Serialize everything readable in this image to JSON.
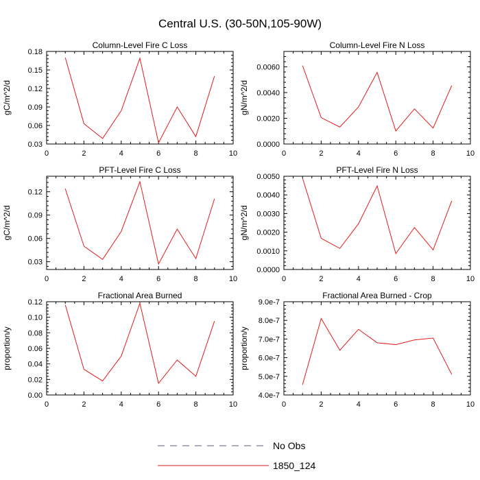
{
  "figure_title": "Central U.S. (30-50N,105-90W)",
  "legend": {
    "entries": [
      {
        "label": "No Obs",
        "style": "dashed",
        "color": "#5a5a8a"
      },
      {
        "label": "1850_124",
        "style": "solid",
        "color": "#e31a1c"
      }
    ]
  },
  "chart_data": [
    {
      "type": "line",
      "title": "Column-Level Fire C Loss",
      "ylabel": "gC/m^2/d",
      "xlim": [
        0,
        10
      ],
      "ylim": [
        0.03,
        0.18
      ],
      "xticks": [
        "0",
        "2",
        "4",
        "6",
        "8",
        "10"
      ],
      "yticks": [
        "0.03",
        "0.06",
        "0.09",
        "0.12",
        "0.15",
        "0.18"
      ],
      "x": [
        1,
        2,
        3,
        4,
        5,
        6,
        7,
        8,
        9
      ],
      "series": [
        {
          "name": "1850_124",
          "color": "#e31a1c",
          "values": [
            0.17,
            0.063,
            0.039,
            0.084,
            0.169,
            0.032,
            0.09,
            0.042,
            0.14
          ]
        }
      ]
    },
    {
      "type": "line",
      "title": "Column-Level Fire N Loss",
      "ylabel": "gN/m^2/d",
      "xlim": [
        0,
        10
      ],
      "ylim": [
        0.0,
        0.0072
      ],
      "xticks": [
        "0",
        "2",
        "4",
        "6",
        "8",
        "10"
      ],
      "yticks": [
        "0.0000",
        "0.0020",
        "0.0040",
        "0.0060"
      ],
      "x": [
        1,
        2,
        3,
        4,
        5,
        6,
        7,
        8,
        9
      ],
      "series": [
        {
          "name": "1850_124",
          "color": "#e31a1c",
          "values": [
            0.0061,
            0.00205,
            0.00132,
            0.00288,
            0.00557,
            0.00101,
            0.00273,
            0.00124,
            0.00455
          ]
        }
      ]
    },
    {
      "type": "line",
      "title": "PFT-Level Fire C Loss",
      "ylabel": "gC/m^2/d",
      "xlim": [
        0,
        10
      ],
      "ylim": [
        0.02,
        0.14
      ],
      "xticks": [
        "0",
        "2",
        "4",
        "6",
        "8",
        "10"
      ],
      "yticks": [
        "0.03",
        "0.06",
        "0.09",
        "0.12"
      ],
      "x": [
        1,
        2,
        3,
        4,
        5,
        6,
        7,
        8,
        9
      ],
      "series": [
        {
          "name": "1850_124",
          "color": "#e31a1c",
          "values": [
            0.124,
            0.05,
            0.033,
            0.069,
            0.133,
            0.027,
            0.072,
            0.034,
            0.111
          ]
        }
      ]
    },
    {
      "type": "line",
      "title": "PFT-Level Fire N Loss",
      "ylabel": "gN/m^2/d",
      "xlim": [
        0,
        10
      ],
      "ylim": [
        0.0,
        0.005
      ],
      "xticks": [
        "0",
        "2",
        "4",
        "6",
        "8",
        "10"
      ],
      "yticks": [
        "0.0000",
        "0.0010",
        "0.0020",
        "0.0030",
        "0.0040",
        "0.0050"
      ],
      "x": [
        1,
        2,
        3,
        4,
        5,
        6,
        7,
        8,
        9
      ],
      "series": [
        {
          "name": "1850_124",
          "color": "#e31a1c",
          "values": [
            0.0049,
            0.00167,
            0.00113,
            0.00245,
            0.00448,
            0.00085,
            0.00225,
            0.00105,
            0.00368
          ]
        }
      ]
    },
    {
      "type": "line",
      "title": "Fractional Area Burned",
      "ylabel": "proportion/y",
      "xlim": [
        0,
        10
      ],
      "ylim": [
        0.0,
        0.12
      ],
      "xticks": [
        "0",
        "2",
        "4",
        "6",
        "8",
        "10"
      ],
      "yticks": [
        "0.00",
        "0.02",
        "0.04",
        "0.06",
        "0.08",
        "0.10",
        "0.12"
      ],
      "x": [
        1,
        2,
        3,
        4,
        5,
        6,
        7,
        8,
        9
      ],
      "series": [
        {
          "name": "1850_124",
          "color": "#e31a1c",
          "values": [
            0.116,
            0.033,
            0.018,
            0.05,
            0.118,
            0.015,
            0.045,
            0.024,
            0.095
          ]
        }
      ]
    },
    {
      "type": "line",
      "title": "Fractional Area Burned - Crop",
      "ylabel": "proportion/y",
      "xlim": [
        0,
        10
      ],
      "ylim": [
        4e-07,
        9e-07
      ],
      "xticks": [
        "0",
        "2",
        "4",
        "6",
        "8",
        "10"
      ],
      "yticks": [
        "4.0e-7",
        "5.0e-7",
        "6.0e-7",
        "7.0e-7",
        "8.0e-7",
        "9.0e-7"
      ],
      "x": [
        1,
        2,
        3,
        4,
        5,
        6,
        7,
        8,
        9
      ],
      "series": [
        {
          "name": "1850_124",
          "color": "#e31a1c",
          "values": [
            4.55e-07,
            8.1e-07,
            6.4e-07,
            7.52e-07,
            6.8e-07,
            6.7e-07,
            6.95e-07,
            7.05e-07,
            5.1e-07
          ]
        }
      ]
    }
  ]
}
